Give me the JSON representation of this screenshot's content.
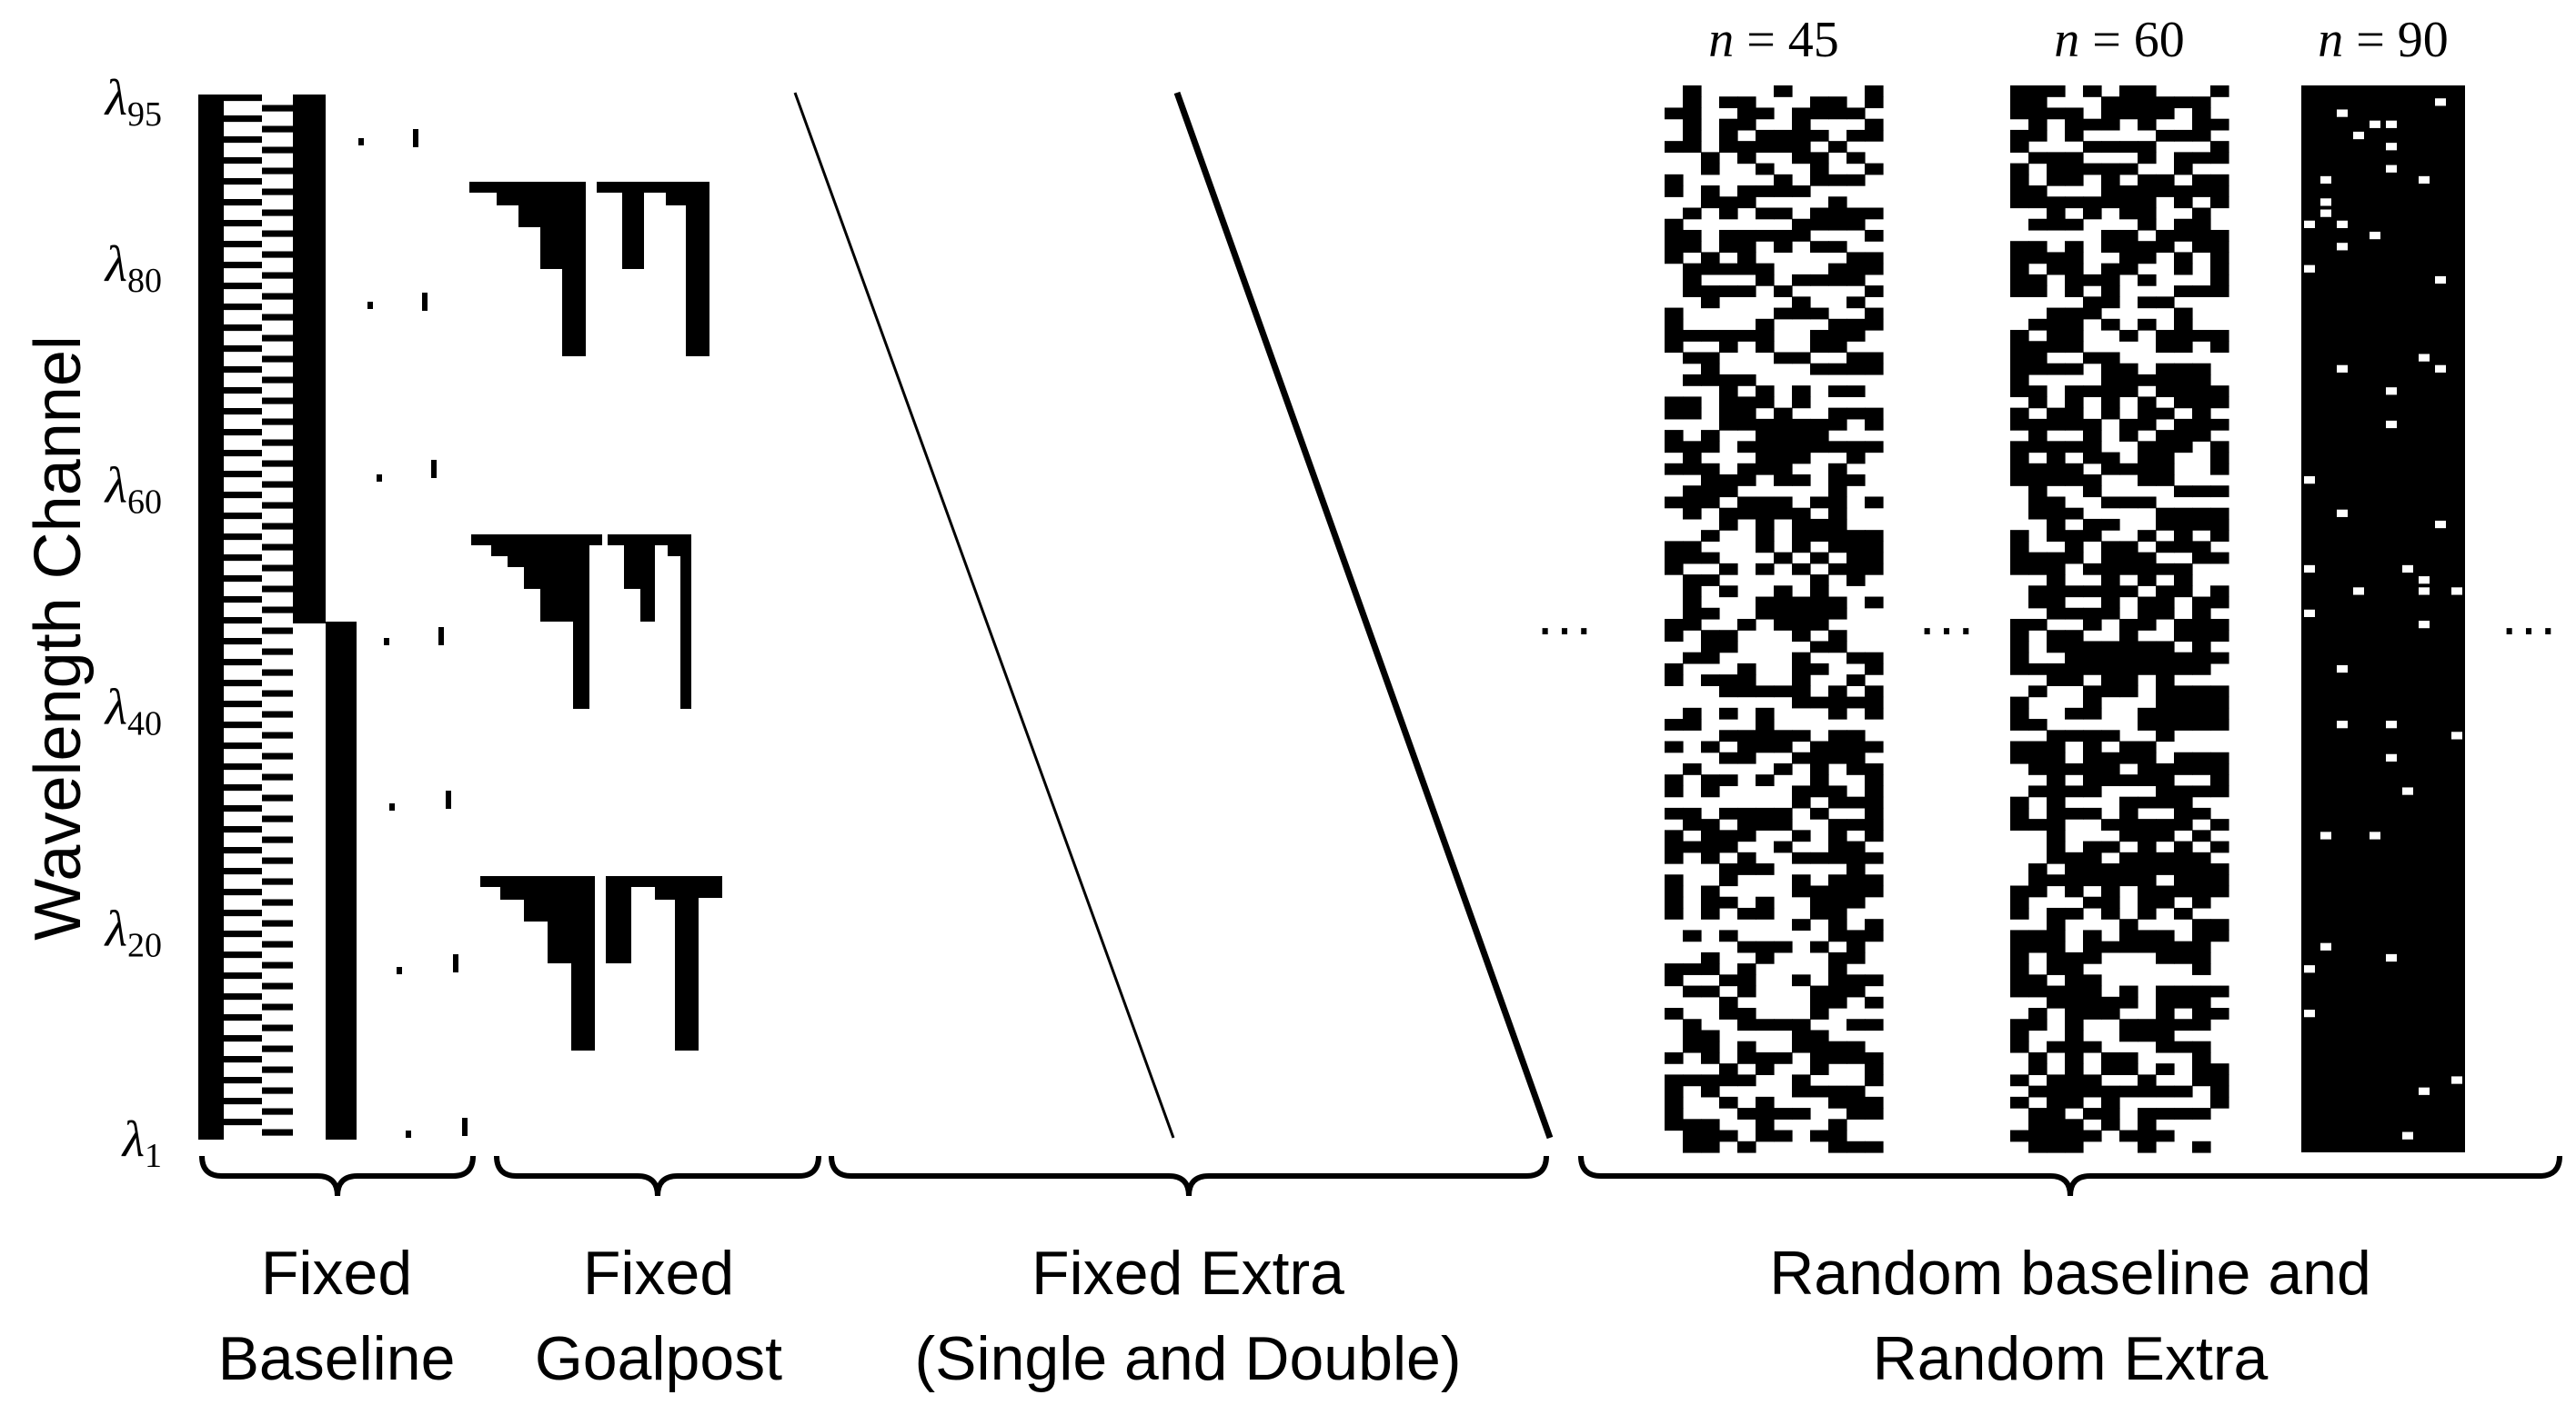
{
  "y_axis": {
    "title": "Wavelength Channel",
    "tick_labels": [
      {
        "sym": "λ",
        "sub": "95",
        "channel": 95
      },
      {
        "sym": "λ",
        "sub": "80",
        "channel": 80
      },
      {
        "sym": "λ",
        "sub": "60",
        "channel": 60
      },
      {
        "sym": "λ",
        "sub": "40",
        "channel": 40
      },
      {
        "sym": "λ",
        "sub": "20",
        "channel": 20
      },
      {
        "sym": "λ",
        "sub": "1",
        "channel": 1
      }
    ]
  },
  "groups": [
    {
      "id": "baseline",
      "lines": [
        "Fixed",
        "Baseline"
      ]
    },
    {
      "id": "goalpost",
      "lines": [
        "Fixed",
        "Goalpost"
      ]
    },
    {
      "id": "extra",
      "lines": [
        "Fixed Extra",
        "(Single and Double)"
      ]
    },
    {
      "id": "random",
      "lines": [
        "Random baseline and",
        "Random Extra"
      ]
    }
  ],
  "random_panels": [
    {
      "label": "n = 45",
      "n": 45
    },
    {
      "label": "n = 60",
      "n": 60
    },
    {
      "label": "n = 90",
      "n": 90
    }
  ],
  "ellipsis": "···",
  "colors": {
    "ink": "#000000",
    "background": "#ffffff"
  }
}
